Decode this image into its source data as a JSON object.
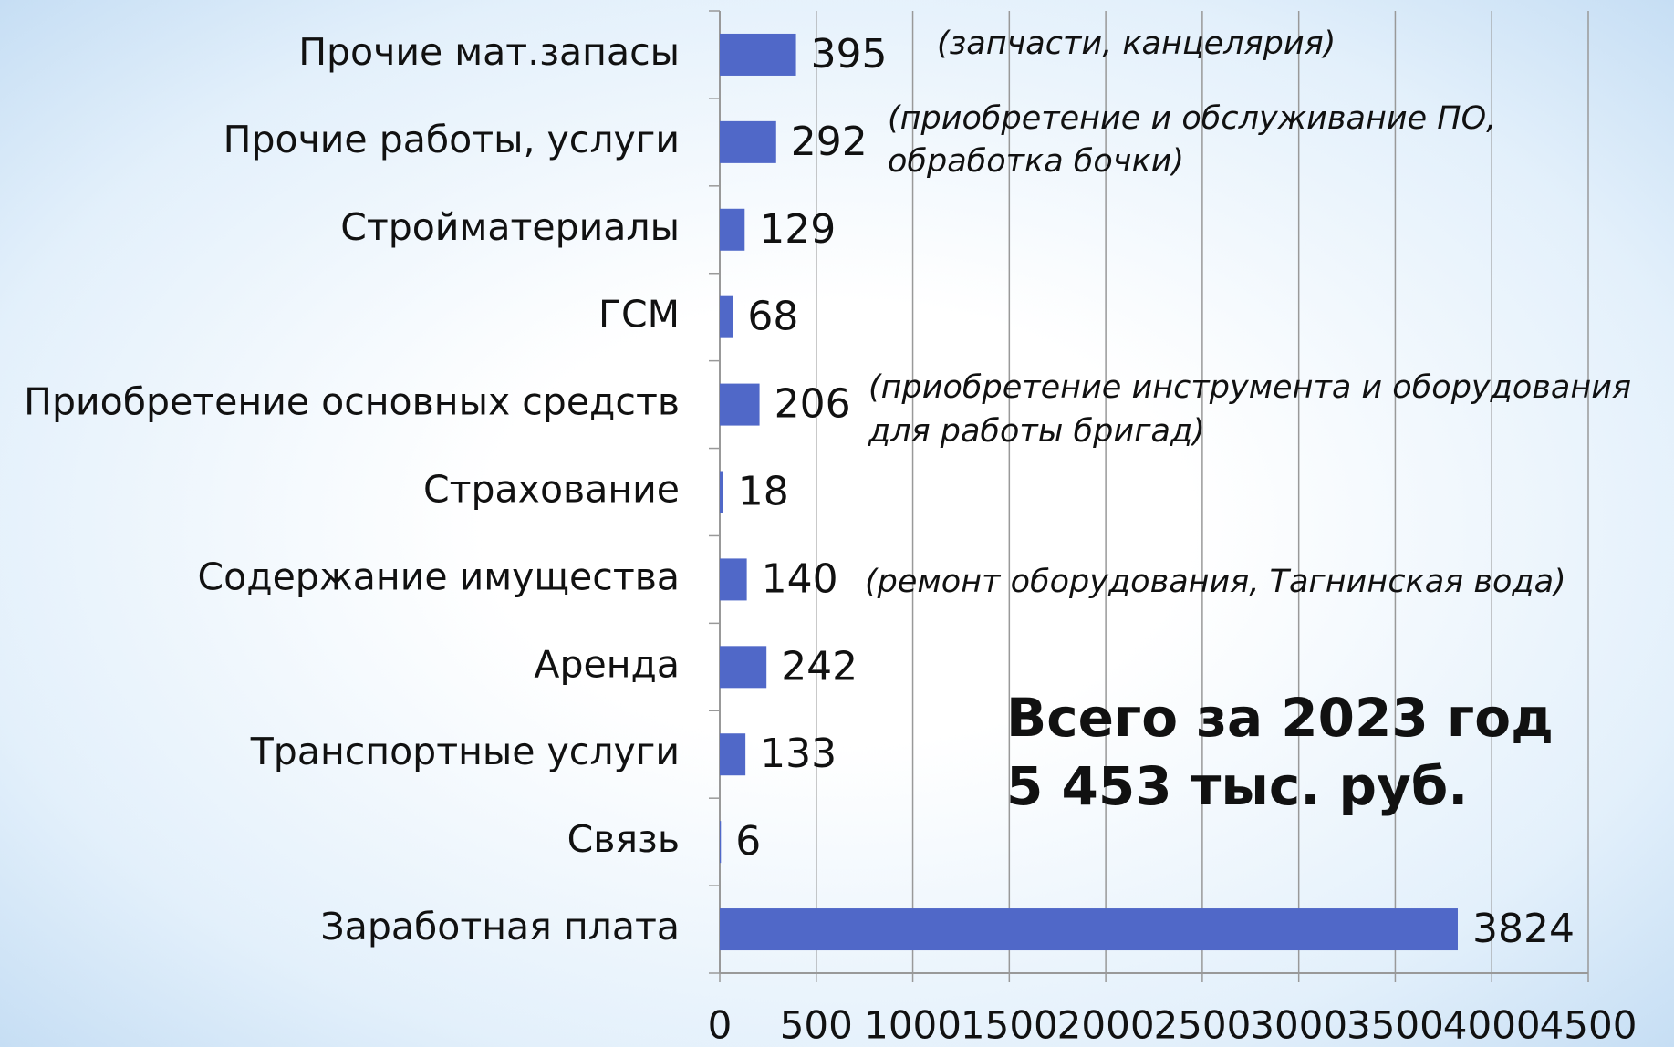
{
  "chart_data": {
    "type": "bar",
    "orientation": "horizontal",
    "categories": [
      "Прочие мат.запасы",
      "Прочие работы, услуги",
      "Стройматериалы",
      "ГСМ",
      "Приобретение основных средств",
      "Страхование",
      "Содержание имущества",
      "Аренда",
      "Транспортные услуги",
      "Связь",
      "Заработная плата"
    ],
    "values": [
      395,
      292,
      129,
      68,
      206,
      18,
      140,
      242,
      133,
      6,
      3824
    ],
    "color": "#5068c8",
    "xlim": [
      0,
      4500
    ],
    "xticks": [
      0,
      500,
      1000,
      1500,
      2000,
      2500,
      3000,
      3500,
      4000,
      4500
    ],
    "grid": true,
    "annotations": [
      [
        "(запчасти, канцелярия)"
      ],
      [
        "(приобретение и обслуживание ПО,",
        "обработка бочки)"
      ],
      [
        "(приобретение инструмента и оборудования",
        "для работы бригад)"
      ],
      [
        "(ремонт оборудования, Тагнинская вода)"
      ]
    ],
    "total": [
      "Всего за 2023 год",
      "5 453 тыс. руб."
    ]
  }
}
